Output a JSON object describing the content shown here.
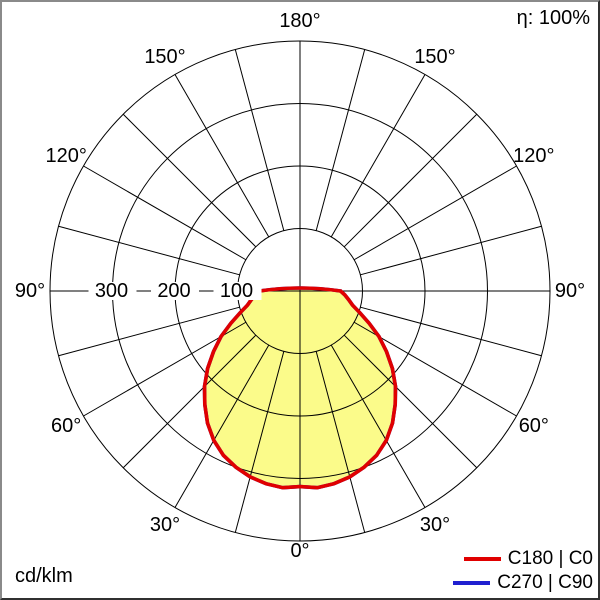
{
  "header": {
    "efficiency_label": "η: 100%"
  },
  "footer": {
    "unit_label": "cd/klm"
  },
  "legend": {
    "position": "bottom-right",
    "items": [
      {
        "label": "C180 | C0",
        "color": "#e00000"
      },
      {
        "label": "C270 | C90",
        "color": "#2020d0"
      }
    ]
  },
  "chart_data": {
    "type": "polar",
    "chart_kind": "luminous-intensity-distribution",
    "unit": "cd/klm",
    "efficiency": "η: 100%",
    "grid": true,
    "legend_position": "bottom-right",
    "radial_axis": {
      "max": 400,
      "ring_step": 100,
      "ticks": [
        {
          "value": 300,
          "label": "300"
        },
        {
          "value": 200,
          "label": "200"
        },
        {
          "value": 100,
          "label": "100"
        }
      ]
    },
    "angle_axis": {
      "spoke_step_deg": 15,
      "label_step_deg": 30,
      "zero_at": "bottom",
      "ticks": [
        {
          "deg": 0,
          "label": "0°",
          "sides": [
            "bottom"
          ]
        },
        {
          "deg": 30,
          "label": "30°",
          "sides": [
            "left",
            "right"
          ]
        },
        {
          "deg": 60,
          "label": "60°",
          "sides": [
            "left",
            "right"
          ]
        },
        {
          "deg": 90,
          "label": "90°",
          "sides": [
            "left",
            "right"
          ]
        },
        {
          "deg": 120,
          "label": "120°",
          "sides": [
            "left",
            "right"
          ]
        },
        {
          "deg": 150,
          "label": "150°",
          "sides": [
            "left",
            "right"
          ]
        },
        {
          "deg": 180,
          "label": "180°",
          "sides": [
            "top"
          ]
        }
      ]
    },
    "series": [
      {
        "name": "C180 | C0",
        "color": "#e00000",
        "fill": "#fbfb8a",
        "symmetric": true,
        "gamma_step_deg": 5,
        "gamma_deg": [
          0,
          5,
          10,
          15,
          20,
          25,
          30,
          35,
          40,
          45,
          50,
          55,
          60,
          65,
          70,
          75,
          80,
          85,
          90
        ],
        "values_cd_klm": [
          313,
          316,
          313,
          308,
          300,
          290,
          276,
          258,
          237,
          216,
          193,
          169,
          146,
          122,
          102,
          87,
          79,
          72,
          65
        ]
      },
      {
        "name": "C270 | C90",
        "color": "#2020d0",
        "fill": null,
        "symmetric": true,
        "gamma_step_deg": 5,
        "gamma_deg": [
          0,
          5,
          10,
          15,
          20,
          25,
          30,
          35,
          40,
          45,
          50,
          55,
          60,
          65,
          70,
          75,
          80,
          85,
          90
        ],
        "values_cd_klm": [
          313,
          316,
          313,
          308,
          300,
          290,
          276,
          258,
          237,
          216,
          193,
          169,
          146,
          122,
          102,
          87,
          79,
          72,
          65
        ]
      }
    ]
  }
}
